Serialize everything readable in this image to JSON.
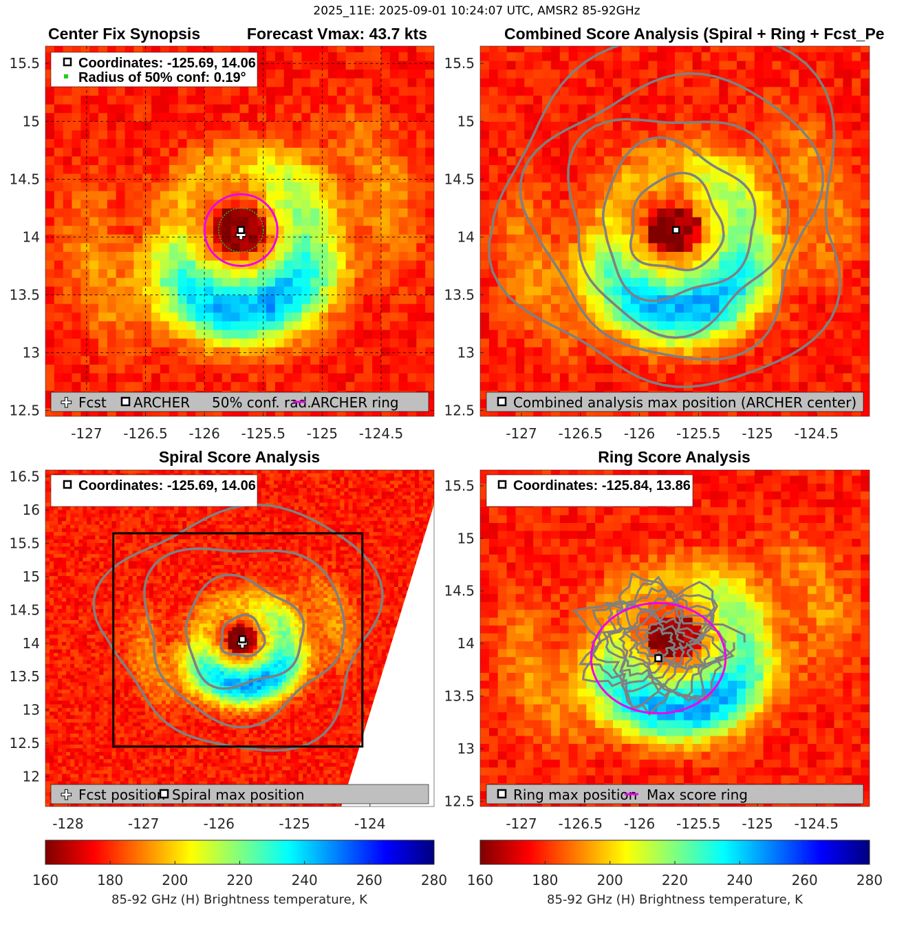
{
  "suptitle": "2025_11E: 2025-09-01 10:24:07 UTC, AMSR2 85-92GHz",
  "colors": {
    "marker_fill": "#ffffff",
    "marker_stroke": "#000000",
    "conf_circle": "#22cc22",
    "ring": "#ee00ee",
    "contour": "#808080",
    "legend_bg": "#bfbfbf"
  },
  "colormap": "jet",
  "chart_data": [
    {
      "id": "center_fix",
      "type": "heatmap",
      "title": "Center Fix Synopsis",
      "title_right": "Forecast Vmax: 43.7 kts",
      "xlim": [
        -127.35,
        -124.05
      ],
      "ylim": [
        12.45,
        15.65
      ],
      "xticks": [
        -127,
        -126.5,
        -126,
        -125.5,
        -125,
        -124.5
      ],
      "xtick_labels": [
        "-127",
        "-126.5",
        "-126",
        "-125.5",
        "-125",
        "-124.5"
      ],
      "yticks": [
        12.5,
        13,
        13.5,
        14,
        14.5,
        15,
        15.5
      ],
      "ytick_labels": [
        "12.5",
        "13",
        "13.5",
        "14",
        "14.5",
        "15",
        "15.5"
      ],
      "grid": true,
      "storm_center": [
        -125.69,
        14.06
      ],
      "info_lines": [
        "Coordinates: -125.69, 14.06",
        "Radius of 50% conf: 0.19°"
      ],
      "fcst_position": [
        -125.69,
        14.02
      ],
      "archer_position": [
        -125.69,
        14.06
      ],
      "conf_radius_deg": 0.19,
      "archer_ring_radius_deg": 0.31,
      "legend": [
        "Fcst",
        "ARCHER",
        "50% conf. rad.",
        "ARCHER ring"
      ]
    },
    {
      "id": "combined",
      "type": "heatmap",
      "title": "Combined Score Analysis (Spiral + Ring + Fcst_Pe",
      "xlim": [
        -127.35,
        -124.05
      ],
      "ylim": [
        12.45,
        15.65
      ],
      "xticks": [
        -127,
        -126.5,
        -126,
        -125.5,
        -125,
        -124.5
      ],
      "xtick_labels": [
        "-127",
        "-126.5",
        "-126",
        "-125.5",
        "-125",
        "-124.5"
      ],
      "yticks": [
        12.5,
        13,
        13.5,
        14,
        14.5,
        15,
        15.5
      ],
      "ytick_labels": [
        "12.5",
        "13",
        "13.5",
        "14",
        "14.5",
        "15",
        "15.5"
      ],
      "storm_center": [
        -125.69,
        14.06
      ],
      "max_position": [
        -125.69,
        14.06
      ],
      "contour_radii_deg": [
        0.38,
        0.62,
        0.88,
        1.14,
        1.42
      ],
      "legend": [
        "Combined analysis max position (ARCHER center)"
      ]
    },
    {
      "id": "spiral",
      "type": "heatmap",
      "title": "Spiral Score Analysis",
      "xlim": [
        -128.3,
        -123.15
      ],
      "ylim": [
        11.55,
        16.6
      ],
      "xticks": [
        -128,
        -127,
        -126,
        -125,
        -124
      ],
      "xtick_labels": [
        "-128",
        "-127",
        "-126",
        "-125",
        "-124"
      ],
      "yticks": [
        12,
        12.5,
        13,
        13.5,
        14,
        14.5,
        15,
        15.5,
        16,
        16.5
      ],
      "ytick_labels": [
        "12",
        "12.5",
        "13",
        "13.5",
        "14",
        "14.5",
        "15",
        "15.5",
        "16",
        "16.5"
      ],
      "storm_center": [
        -125.69,
        14.06
      ],
      "info_lines": [
        "Coordinates: -125.69, 14.06"
      ],
      "fcst_position": [
        -125.69,
        14.0
      ],
      "max_position": [
        -125.69,
        14.06
      ],
      "search_box": {
        "lon": [
          -127.4,
          -124.1
        ],
        "lat": [
          12.45,
          15.65
        ]
      },
      "contour_radii_deg": [
        0.28,
        0.75,
        1.25,
        1.7
      ],
      "legend": [
        "Fcst position",
        "Spiral max position"
      ]
    },
    {
      "id": "ring",
      "type": "heatmap",
      "title": "Ring Score Analysis",
      "xlim": [
        -127.35,
        -124.05
      ],
      "ylim": [
        12.45,
        15.65
      ],
      "xticks": [
        -127,
        -126.5,
        -126,
        -125.5,
        -125,
        -124.5
      ],
      "xtick_labels": [
        "-127",
        "-126.5",
        "-126",
        "-125.5",
        "-125",
        "-124.5"
      ],
      "yticks": [
        12.5,
        13,
        13.5,
        14,
        14.5,
        15,
        15.5
      ],
      "ytick_labels": [
        "12.5",
        "13",
        "13.5",
        "14",
        "14.5",
        "15",
        "15.5"
      ],
      "storm_center": [
        -125.69,
        14.06
      ],
      "info_lines": [
        "Coordinates: -125.84, 13.86"
      ],
      "max_position": [
        -125.84,
        13.86
      ],
      "max_ring_radius_deg": 0.57,
      "legend": [
        "Ring max position",
        "Max score ring"
      ]
    }
  ],
  "colorbars": [
    {
      "min": 160,
      "max": 280,
      "ticks": [
        "160",
        "180",
        "200",
        "220",
        "240",
        "260",
        "280"
      ],
      "label": "85-92 GHz (H) Brightness temperature, K"
    },
    {
      "min": 160,
      "max": 280,
      "ticks": [
        "160",
        "180",
        "200",
        "220",
        "240",
        "260",
        "280"
      ],
      "label": "85-92 GHz (H) Brightness temperature, K"
    }
  ]
}
